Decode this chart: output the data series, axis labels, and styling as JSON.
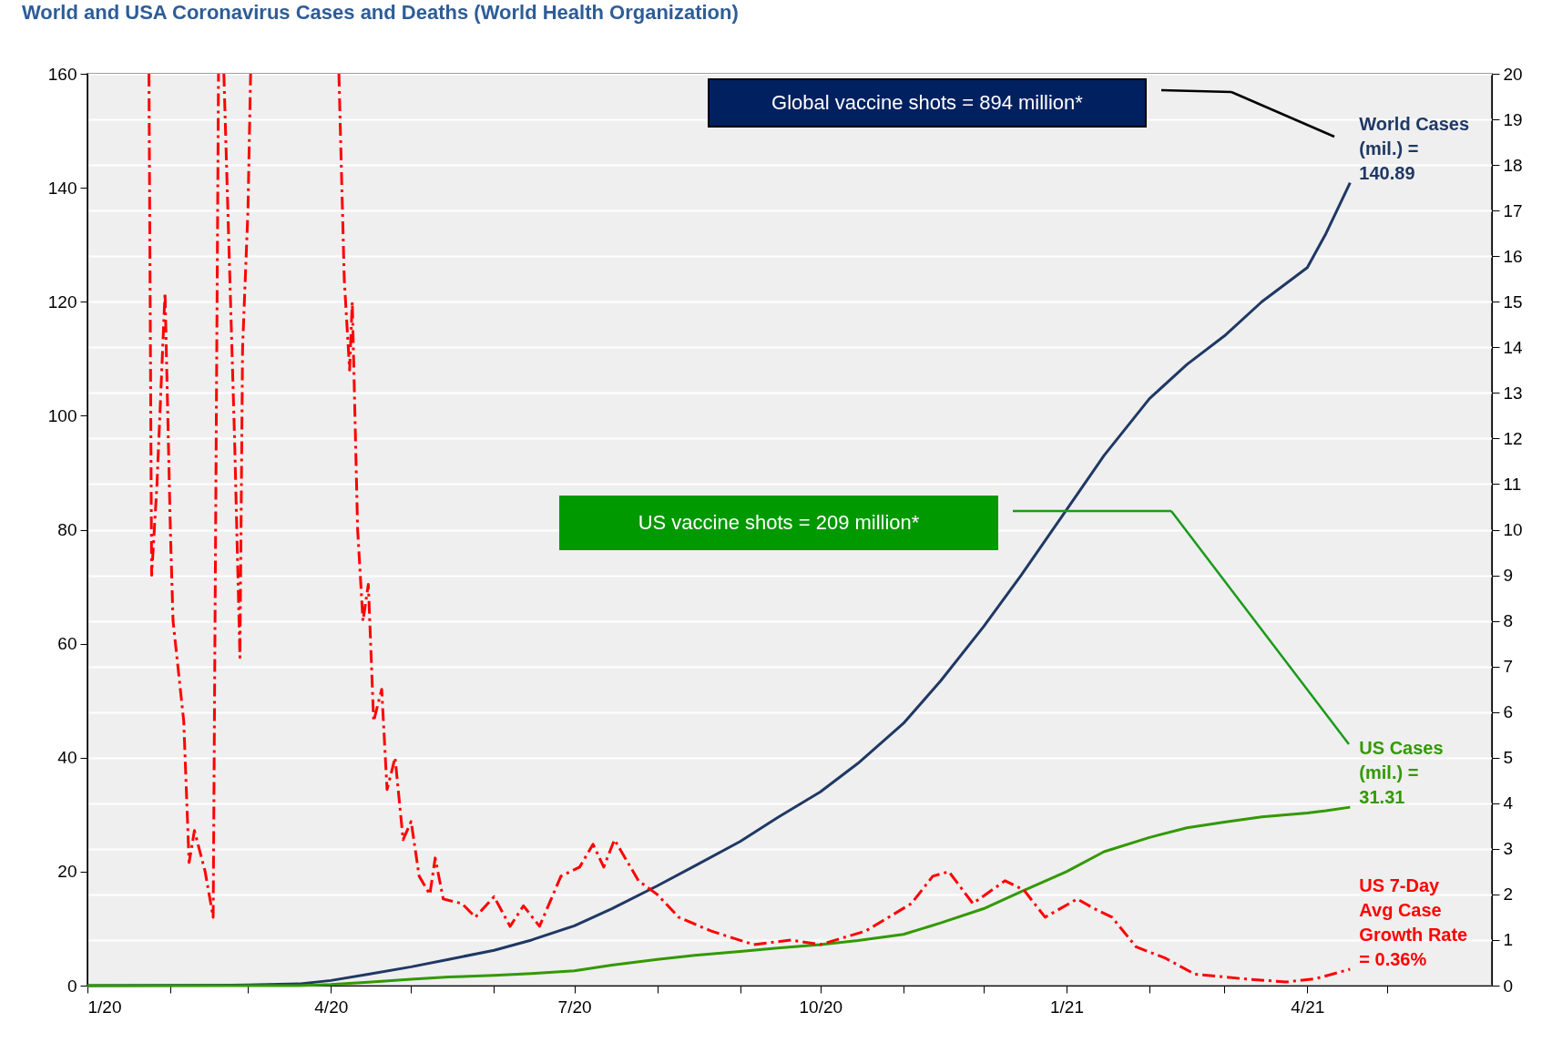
{
  "chart_data": {
    "type": "line",
    "title": "World and USA Coronavirus Cases and Deaths (World Health Organization)",
    "x": [
      "2020-01-01",
      "2020-03-01",
      "2020-03-20",
      "2020-04-01",
      "2020-04-15",
      "2020-05-01",
      "2020-05-15",
      "2020-06-01",
      "2020-06-15",
      "2020-07-01",
      "2020-07-15",
      "2020-08-01",
      "2020-08-15",
      "2020-09-01",
      "2020-09-15",
      "2020-10-01",
      "2020-10-15",
      "2020-11-01",
      "2020-11-15",
      "2020-12-01",
      "2020-12-15",
      "2021-01-01",
      "2021-01-15",
      "2021-02-01",
      "2021-02-15",
      "2021-03-01",
      "2021-03-15",
      "2021-04-01",
      "2021-04-08",
      "2021-04-17"
    ],
    "series": [
      {
        "name": "World Cases (mil.) = 140.89",
        "color": "#1f3864",
        "values": [
          0,
          0.1,
          0.3,
          0.9,
          2.0,
          3.3,
          4.6,
          6.2,
          8.0,
          10.5,
          13.5,
          17.5,
          21,
          25.3,
          29.5,
          34,
          39,
          46,
          53.5,
          63,
          72,
          83.5,
          93,
          103,
          109,
          114,
          120,
          126,
          132,
          140.89
        ]
      },
      {
        "name": "US Cases (mil.) = 31.31",
        "color": "#339900",
        "values": [
          0,
          0,
          0,
          0.2,
          0.6,
          1.1,
          1.5,
          1.8,
          2.1,
          2.6,
          3.6,
          4.6,
          5.3,
          6.0,
          6.6,
          7.2,
          7.9,
          9.0,
          11,
          13.5,
          16.5,
          20,
          23.5,
          26,
          27.7,
          28.7,
          29.6,
          30.3,
          30.7,
          31.31
        ]
      },
      {
        "name": "US 7-Day Avg Case Growth Rate = 0.36%",
        "color": "#ff0000",
        "axis": "y2",
        "line_style": "dashed",
        "x": [
          "2020-01-24",
          "2020-01-25",
          "2020-01-27",
          "2020-01-30",
          "2020-02-01",
          "2020-02-02",
          "2020-02-06",
          "2020-02-08",
          "2020-02-10",
          "2020-02-14",
          "2020-02-17",
          "2020-02-19",
          "2020-02-20",
          "2020-02-21",
          "2020-02-23",
          "2020-02-25",
          "2020-02-27",
          "2020-02-28",
          "2020-03-01",
          "2020-03-02",
          "2020-03-03",
          "2020-04-03",
          "2020-04-04",
          "2020-04-06",
          "2020-04-08",
          "2020-04-09",
          "2020-04-11",
          "2020-04-13",
          "2020-04-15",
          "2020-04-17",
          "2020-04-20",
          "2020-04-22",
          "2020-04-25",
          "2020-04-28",
          "2020-05-01",
          "2020-05-04",
          "2020-05-08",
          "2020-05-10",
          "2020-05-13",
          "2020-05-20",
          "2020-05-25",
          "2020-06-01",
          "2020-06-07",
          "2020-06-12",
          "2020-06-18",
          "2020-06-26",
          "2020-07-03",
          "2020-07-08",
          "2020-07-12",
          "2020-07-16",
          "2020-07-25",
          "2020-08-01",
          "2020-08-09",
          "2020-08-21",
          "2020-09-06",
          "2020-09-20",
          "2020-10-01",
          "2020-10-18",
          "2020-11-04",
          "2020-11-12",
          "2020-11-18",
          "2020-11-27",
          "2020-12-09",
          "2020-12-16",
          "2020-12-24",
          "2021-01-05",
          "2021-01-11",
          "2021-01-18",
          "2021-01-27",
          "2021-02-07",
          "2021-02-18",
          "2021-03-08",
          "2021-03-24",
          "2021-04-04",
          "2021-04-17"
        ],
        "values": [
          20,
          9.0,
          11,
          15.2,
          10,
          8.0,
          5.8,
          2.7,
          3.4,
          2.5,
          1.5,
          20,
          null,
          20,
          16,
          12,
          7.2,
          14,
          17,
          20,
          null,
          null,
          20,
          15.5,
          13.5,
          15,
          10,
          8,
          8.8,
          5.8,
          6.5,
          4.3,
          5.0,
          3.2,
          3.6,
          2.4,
          2.0,
          2.8,
          1.9,
          1.8,
          1.5,
          1.95,
          1.3,
          1.75,
          1.3,
          2.4,
          2.6,
          3.1,
          2.6,
          3.2,
          2.3,
          2.0,
          1.5,
          1.2,
          0.9,
          1.0,
          0.9,
          1.2,
          1.8,
          2.4,
          2.5,
          1.8,
          2.3,
          2.1,
          1.5,
          1.9,
          1.7,
          1.5,
          0.85,
          0.6,
          0.25,
          0.15,
          0.08,
          0.15,
          0.36
        ]
      }
    ],
    "xlim": [
      "2020-01-01",
      "2021-06-09"
    ],
    "xticks": [
      {
        "value": "2020-01-01",
        "label": "1/20"
      },
      {
        "value": "2020-02-01",
        "label": null
      },
      {
        "value": "2020-03-01",
        "label": null
      },
      {
        "value": "2020-04-01",
        "label": "4/20"
      },
      {
        "value": "2020-05-01",
        "label": null
      },
      {
        "value": "2020-06-01",
        "label": null
      },
      {
        "value": "2020-07-01",
        "label": "7/20"
      },
      {
        "value": "2020-08-01",
        "label": null
      },
      {
        "value": "2020-09-01",
        "label": null
      },
      {
        "value": "2020-10-01",
        "label": "10/20"
      },
      {
        "value": "2020-11-01",
        "label": null
      },
      {
        "value": "2020-12-01",
        "label": null
      },
      {
        "value": "2021-01-01",
        "label": "1/21"
      },
      {
        "value": "2021-02-01",
        "label": null
      },
      {
        "value": "2021-03-01",
        "label": null
      },
      {
        "value": "2021-04-01",
        "label": "4/21"
      },
      {
        "value": "2021-05-01",
        "label": null
      }
    ],
    "ylim": [
      0,
      160
    ],
    "yticks": [
      0,
      20,
      40,
      60,
      80,
      100,
      120,
      140,
      160
    ],
    "y2lim": [
      0,
      20
    ],
    "y2ticks": [
      0,
      1,
      2,
      3,
      4,
      5,
      6,
      7,
      8,
      9,
      10,
      11,
      12,
      13,
      14,
      15,
      16,
      17,
      18,
      19,
      20
    ],
    "grid": "y",
    "annotations": [
      "Global vaccine shots = 894 million*",
      "US vaccine shots = 209 million*"
    ]
  }
}
